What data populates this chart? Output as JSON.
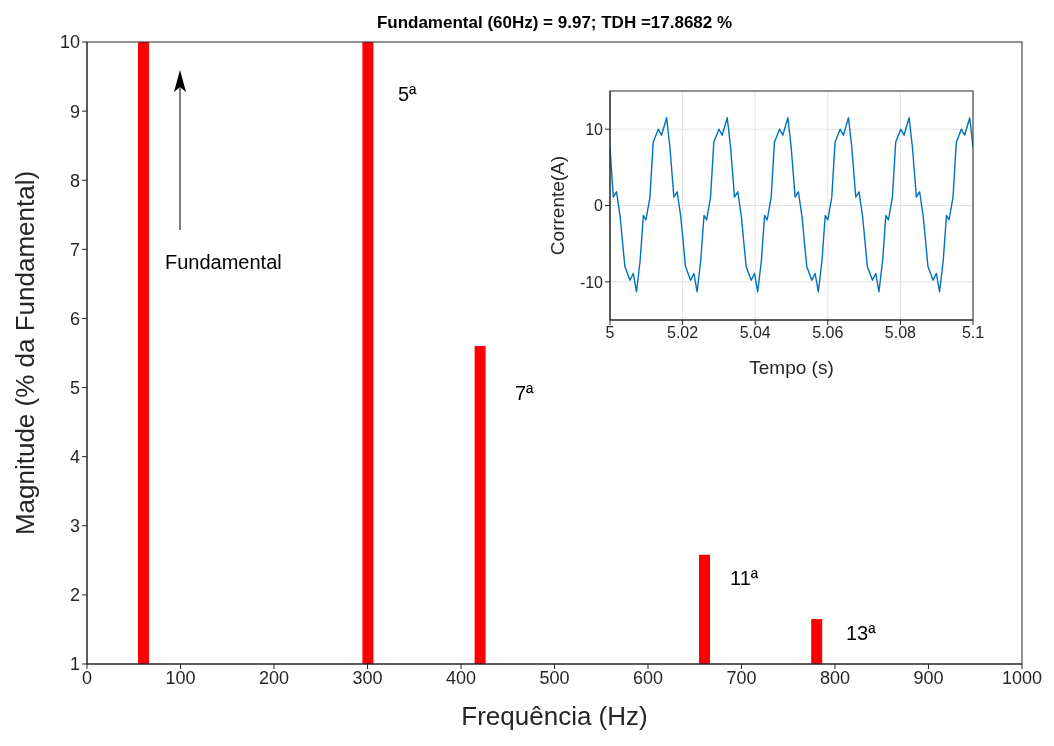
{
  "chart_data": [
    {
      "type": "bar",
      "title": "Fundamental (60Hz) = 9.97; TDH =17.8682 %",
      "xlabel": "Frequência (Hz)",
      "ylabel": "Magnitude (% da Fundamental)",
      "x": [
        60,
        300,
        420,
        660,
        780
      ],
      "values": [
        10,
        10,
        5.6,
        2.58,
        1.65
      ],
      "color": "#ff0000",
      "xlim": [
        0,
        1000
      ],
      "xticks": [
        0,
        100,
        200,
        300,
        400,
        500,
        600,
        700,
        800,
        900,
        1000
      ],
      "ylim": [
        1,
        10
      ],
      "yticks": [
        1,
        2,
        3,
        4,
        5,
        6,
        7,
        8,
        9,
        10
      ],
      "grid": false,
      "annotations": [
        "Fundamental",
        "5ª",
        "7ª",
        "11ª",
        "13ª"
      ]
    },
    {
      "type": "line",
      "xlabel": "Tempo (s)",
      "ylabel": "Corrente(A)",
      "color": "#0072bd",
      "marker": "none",
      "line_style": "solid",
      "x": [
        5.0,
        5.0009,
        5.0018,
        5.0028,
        5.0041,
        5.0055,
        5.0064,
        5.0073,
        5.0083,
        5.0092,
        5.0099,
        5.011,
        5.0119,
        5.0133,
        5.0142,
        5.0156,
        5.0165,
        5.0176,
        5.0185,
        5.0195,
        5.0208,
        5.0222,
        5.0231,
        5.024,
        5.025,
        5.0259,
        5.0266,
        5.0277,
        5.0286,
        5.03,
        5.0309,
        5.0323,
        5.0332,
        5.0343,
        5.0352,
        5.0362,
        5.0375,
        5.0389,
        5.0398,
        5.0407,
        5.0417,
        5.0426,
        5.0433,
        5.0444,
        5.0453,
        5.0467,
        5.0476,
        5.049,
        5.0499,
        5.051,
        5.0519,
        5.0529,
        5.0542,
        5.0556,
        5.0565,
        5.0574,
        5.0584,
        5.0593,
        5.06,
        5.0611,
        5.062,
        5.0634,
        5.0643,
        5.0657,
        5.0666,
        5.0677,
        5.0686,
        5.0696,
        5.0709,
        5.0723,
        5.0732,
        5.0741,
        5.0751,
        5.076,
        5.0767,
        5.0778,
        5.0787,
        5.0801,
        5.081,
        5.0824,
        5.0833,
        5.0844,
        5.0853,
        5.0863,
        5.0876,
        5.089,
        5.0899,
        5.0908,
        5.0918,
        5.0927,
        5.0934,
        5.0945,
        5.0954,
        5.0968,
        5.0977,
        5.0991,
        5.1
      ],
      "values": [
        7.7,
        1.1,
        1.8,
        -1.5,
        -8.0,
        -9.8,
        -8.9,
        -11.3,
        -7.2,
        -1.3,
        -1.9,
        1.1,
        8.3,
        10.0,
        9.2,
        11.5,
        7.7,
        1.1,
        1.8,
        -1.5,
        -8.0,
        -9.8,
        -8.9,
        -11.3,
        -7.2,
        -1.3,
        -1.9,
        1.1,
        8.3,
        10.0,
        9.2,
        11.5,
        7.7,
        1.1,
        1.8,
        -1.5,
        -8.0,
        -9.8,
        -8.9,
        -11.3,
        -7.2,
        -1.3,
        -1.9,
        1.1,
        8.3,
        10.0,
        9.2,
        11.5,
        7.7,
        1.1,
        1.8,
        -1.5,
        -8.0,
        -9.8,
        -8.9,
        -11.3,
        -7.2,
        -1.3,
        -1.9,
        1.1,
        8.3,
        10.0,
        9.2,
        11.5,
        7.7,
        1.1,
        1.8,
        -1.5,
        -8.0,
        -9.8,
        -8.9,
        -11.3,
        -7.2,
        -1.3,
        -1.9,
        1.1,
        8.3,
        10.0,
        9.2,
        11.5,
        7.7,
        1.1,
        1.8,
        -1.5,
        -8.0,
        -9.8,
        -8.9,
        -11.3,
        -7.2,
        -1.3,
        -1.9,
        1.1,
        8.3,
        10.0,
        9.2,
        11.5,
        7.7
      ],
      "xlim": [
        5,
        5.1
      ],
      "xticks": [
        5,
        5.02,
        5.04,
        5.06,
        5.08,
        5.1
      ],
      "ylim": [
        -15,
        15
      ],
      "yticks": [
        -10,
        0,
        10
      ],
      "grid": true
    }
  ]
}
